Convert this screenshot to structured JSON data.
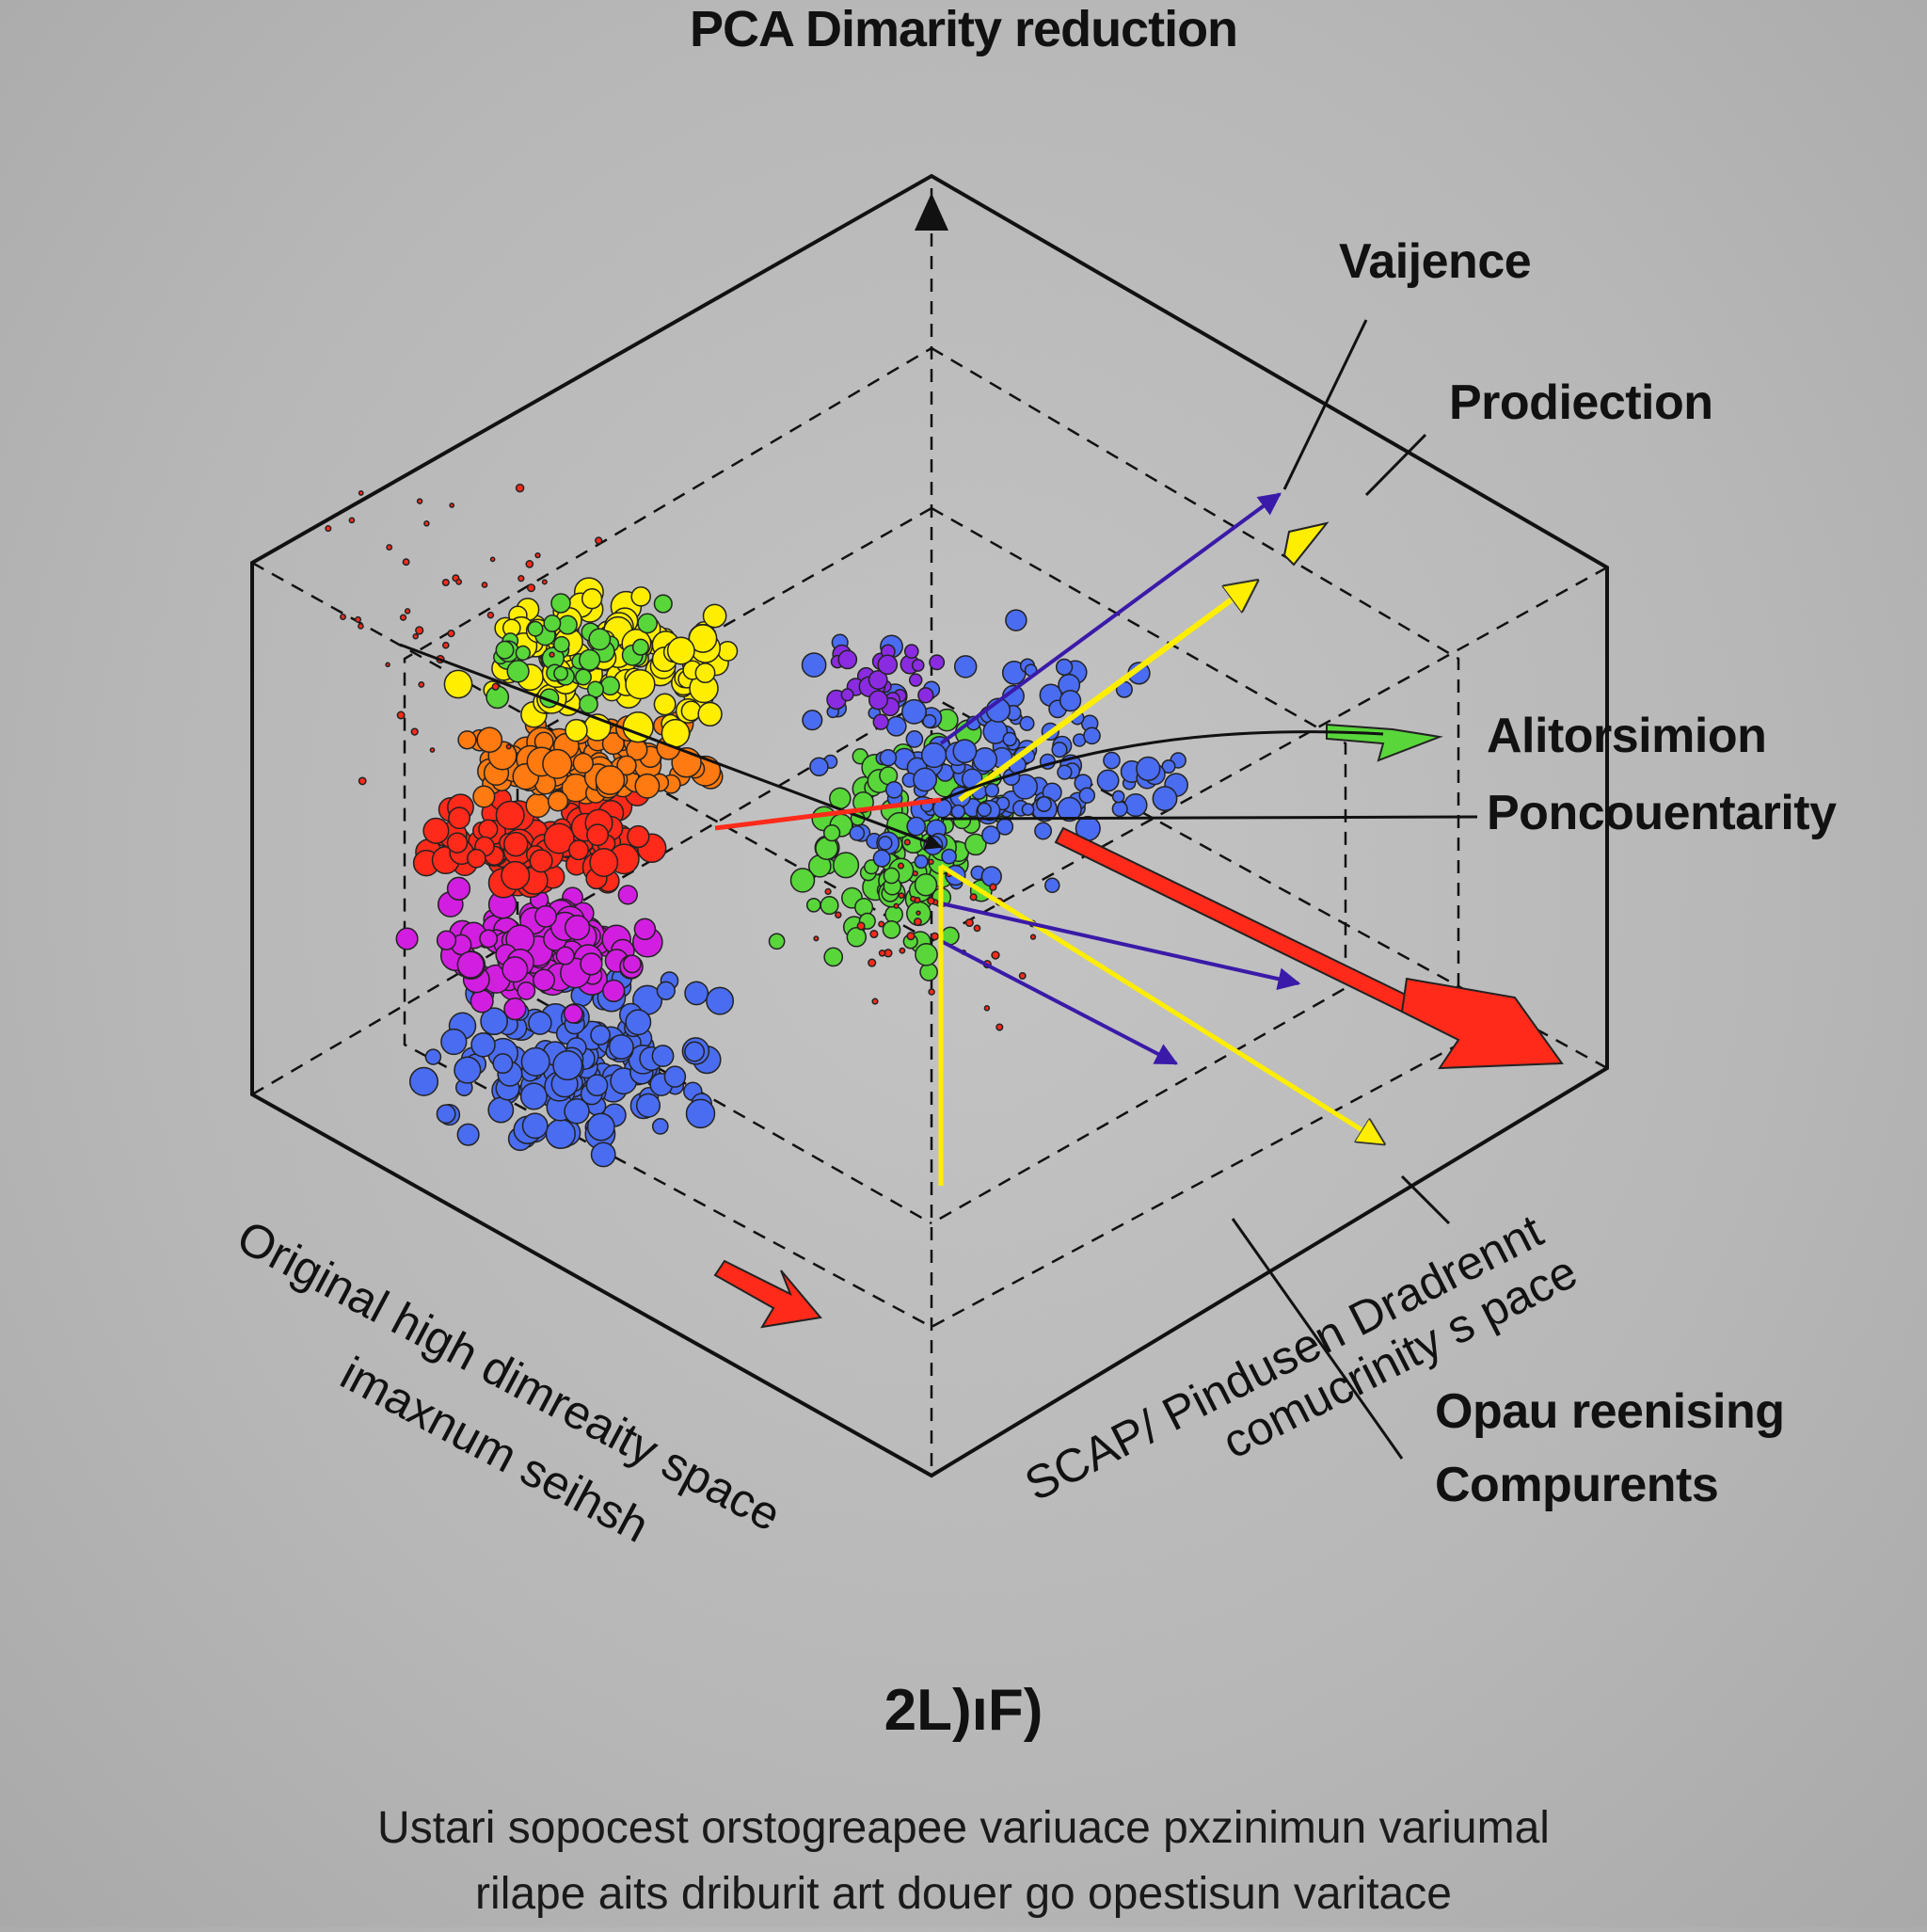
{
  "title": "PCA Dimarity reduction",
  "labels": {
    "variance": "Vaijence",
    "projection": "Prodiection",
    "alt1": "Alitorsimion",
    "alt2": "Poncouentarity",
    "components1": "Opau reenising",
    "components2": "Compurents",
    "original1": "Original high dimreaity space",
    "original2": "imaxnum seihsh",
    "scap1": "SCAP/ Pindusen Dradrennt",
    "scap2": "comucrinity s pace",
    "center_mark": "2L)ıF)",
    "caption1": "Ustari sopocest orstogreapee variuace pxzinimun variumal",
    "caption2": "rilape aits driburit art douer go opestisun varitace"
  },
  "colors": {
    "red": "#ff2a1a",
    "orange": "#ff7a10",
    "yellow": "#ffee00",
    "green": "#58d63a",
    "blue": "#4a6cf0",
    "purple": "#8a2be2",
    "magenta": "#d21ee0",
    "indigo": "#3a1aa8",
    "outline": "#111111"
  },
  "icons": [
    "up-arrow-icon",
    "red-arrow-icon",
    "green-arrow-icon"
  ]
}
